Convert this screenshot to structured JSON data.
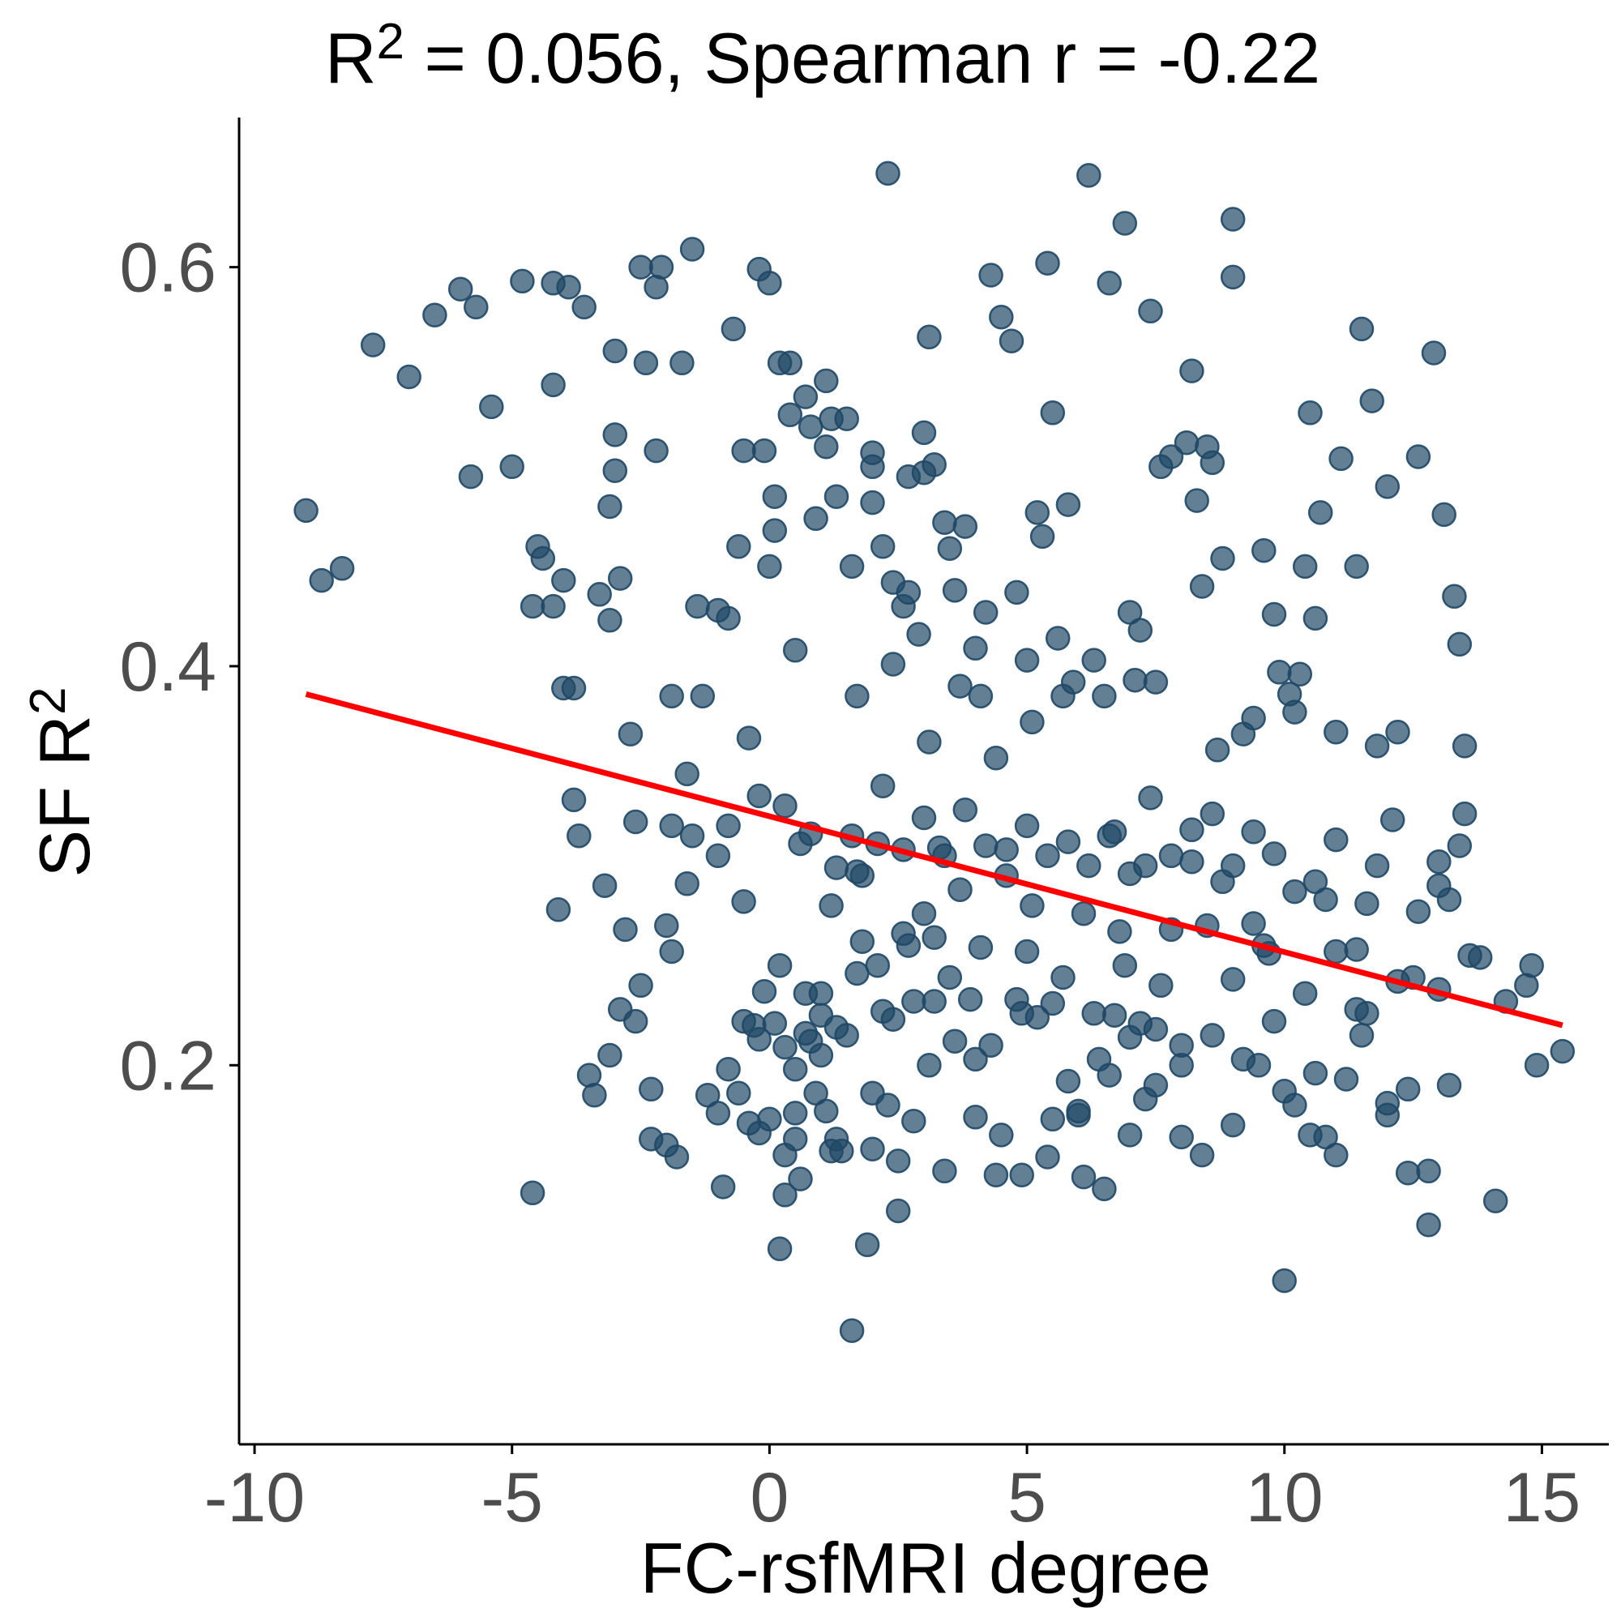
{
  "chart_data": {
    "type": "scatter",
    "title": {
      "prefix": "R",
      "superscript": "2",
      "suffix": " = 0.056, Spearman r = -0.22"
    },
    "xlabel": "FC-rsfMRI degree",
    "ylabel": {
      "text": "SF R",
      "superscript": "2"
    },
    "xlim": [
      -10.3,
      16.3
    ],
    "ylim": [
      0.01,
      0.675
    ],
    "x_ticks": [
      {
        "value": -10,
        "label": "-10"
      },
      {
        "value": -5,
        "label": "-5"
      },
      {
        "value": 0,
        "label": "0"
      },
      {
        "value": 5,
        "label": "5"
      },
      {
        "value": 10,
        "label": "10"
      },
      {
        "value": 15,
        "label": "15"
      }
    ],
    "y_ticks": [
      {
        "value": 0.2,
        "label": "0.2"
      },
      {
        "value": 0.4,
        "label": "0.4"
      },
      {
        "value": 0.6,
        "label": "0.6"
      }
    ],
    "grid": false,
    "legend": "none",
    "point_color": "#1f4866",
    "point_opacity": 0.7,
    "fit_line": {
      "color": "#ff0000",
      "x": [
        -9.0,
        15.4
      ],
      "y": [
        0.386,
        0.22
      ]
    },
    "points": [
      [
        -9.0,
        0.478
      ],
      [
        -8.7,
        0.443
      ],
      [
        -8.3,
        0.449
      ],
      [
        -7.7,
        0.561
      ],
      [
        -7.0,
        0.545
      ],
      [
        -6.5,
        0.576
      ],
      [
        -6.0,
        0.589
      ],
      [
        -5.8,
        0.495
      ],
      [
        -5.7,
        0.58
      ],
      [
        -5.4,
        0.53
      ],
      [
        -5.0,
        0.5
      ],
      [
        -4.8,
        0.593
      ],
      [
        -4.6,
        0.43
      ],
      [
        -4.6,
        0.136
      ],
      [
        -4.5,
        0.46
      ],
      [
        -4.4,
        0.454
      ],
      [
        -4.2,
        0.592
      ],
      [
        -4.2,
        0.541
      ],
      [
        -4.2,
        0.43
      ],
      [
        -4.1,
        0.278
      ],
      [
        -4.0,
        0.443
      ],
      [
        -4.0,
        0.389
      ],
      [
        -3.9,
        0.59
      ],
      [
        -3.8,
        0.389
      ],
      [
        -3.8,
        0.333
      ],
      [
        -3.7,
        0.315
      ],
      [
        -3.6,
        0.58
      ],
      [
        -3.5,
        0.195
      ],
      [
        -3.4,
        0.185
      ],
      [
        -3.3,
        0.436
      ],
      [
        -3.2,
        0.29
      ],
      [
        -3.1,
        0.48
      ],
      [
        -3.1,
        0.423
      ],
      [
        -3.1,
        0.205
      ],
      [
        -3.0,
        0.558
      ],
      [
        -3.0,
        0.516
      ],
      [
        -3.0,
        0.498
      ],
      [
        -2.9,
        0.444
      ],
      [
        -2.9,
        0.228
      ],
      [
        -2.8,
        0.268
      ],
      [
        -2.7,
        0.366
      ],
      [
        -2.6,
        0.222
      ],
      [
        -2.6,
        0.322
      ],
      [
        -2.5,
        0.6
      ],
      [
        -2.4,
        0.552
      ],
      [
        -2.3,
        0.188
      ],
      [
        -2.3,
        0.163
      ],
      [
        -2.2,
        0.508
      ],
      [
        -2.2,
        0.59
      ],
      [
        -2.1,
        0.6
      ],
      [
        -2.0,
        0.16
      ],
      [
        -1.9,
        0.257
      ],
      [
        -1.9,
        0.385
      ],
      [
        -1.9,
        0.32
      ],
      [
        -1.8,
        0.154
      ],
      [
        -1.7,
        0.552
      ],
      [
        -1.6,
        0.346
      ],
      [
        -1.6,
        0.291
      ],
      [
        -1.5,
        0.609
      ],
      [
        -1.4,
        0.43
      ],
      [
        -1.3,
        0.385
      ],
      [
        -1.2,
        0.185
      ],
      [
        -1.0,
        0.428
      ],
      [
        -0.9,
        0.139
      ],
      [
        -0.8,
        0.198
      ],
      [
        -0.8,
        0.424
      ],
      [
        -0.7,
        0.569
      ],
      [
        -0.6,
        0.46
      ],
      [
        -0.6,
        0.186
      ],
      [
        -0.5,
        0.508
      ],
      [
        -0.4,
        0.364
      ],
      [
        -0.4,
        0.171
      ],
      [
        -0.3,
        0.22
      ],
      [
        -0.2,
        0.166
      ],
      [
        -0.2,
        0.213
      ],
      [
        -0.2,
        0.599
      ],
      [
        -0.1,
        0.508
      ],
      [
        -0.1,
        0.237
      ],
      [
        0.0,
        0.45
      ],
      [
        0.0,
        0.592
      ],
      [
        0.1,
        0.221
      ],
      [
        0.1,
        0.485
      ],
      [
        0.1,
        0.468
      ],
      [
        0.2,
        0.552
      ],
      [
        0.2,
        0.25
      ],
      [
        0.3,
        0.209
      ],
      [
        0.3,
        0.155
      ],
      [
        0.4,
        0.526
      ],
      [
        0.4,
        0.552
      ],
      [
        0.5,
        0.198
      ],
      [
        0.5,
        0.176
      ],
      [
        0.5,
        0.408
      ],
      [
        0.6,
        0.311
      ],
      [
        0.7,
        0.535
      ],
      [
        0.7,
        0.236
      ],
      [
        0.8,
        0.52
      ],
      [
        0.8,
        0.212
      ],
      [
        0.9,
        0.474
      ],
      [
        1.0,
        0.205
      ],
      [
        1.0,
        0.225
      ],
      [
        1.1,
        0.51
      ],
      [
        1.1,
        0.177
      ],
      [
        1.1,
        0.543
      ],
      [
        1.2,
        0.524
      ],
      [
        1.2,
        0.157
      ],
      [
        1.3,
        0.485
      ],
      [
        1.3,
        0.219
      ],
      [
        1.4,
        0.157
      ],
      [
        1.5,
        0.524
      ],
      [
        1.6,
        0.45
      ],
      [
        1.6,
        0.067
      ],
      [
        1.7,
        0.385
      ],
      [
        1.7,
        0.246
      ],
      [
        1.8,
        0.262
      ],
      [
        1.9,
        0.11
      ],
      [
        2.0,
        0.507
      ],
      [
        2.0,
        0.5
      ],
      [
        2.0,
        0.482
      ],
      [
        2.1,
        0.311
      ],
      [
        2.2,
        0.46
      ],
      [
        2.2,
        0.227
      ],
      [
        2.3,
        0.647
      ],
      [
        2.4,
        0.442
      ],
      [
        2.4,
        0.401
      ],
      [
        2.5,
        0.127
      ],
      [
        2.6,
        0.266
      ],
      [
        2.6,
        0.43
      ],
      [
        2.7,
        0.495
      ],
      [
        2.7,
        0.437
      ],
      [
        2.8,
        0.232
      ],
      [
        2.9,
        0.416
      ],
      [
        3.0,
        0.517
      ],
      [
        3.0,
        0.497
      ],
      [
        3.1,
        0.565
      ],
      [
        3.1,
        0.362
      ],
      [
        3.2,
        0.264
      ],
      [
        3.2,
        0.501
      ],
      [
        3.3,
        0.309
      ],
      [
        3.4,
        0.472
      ],
      [
        3.5,
        0.459
      ],
      [
        3.6,
        0.438
      ],
      [
        3.7,
        0.39
      ],
      [
        3.8,
        0.47
      ],
      [
        3.9,
        0.233
      ],
      [
        4.0,
        0.409
      ],
      [
        4.1,
        0.385
      ],
      [
        4.2,
        0.427
      ],
      [
        4.3,
        0.596
      ],
      [
        4.4,
        0.354
      ],
      [
        4.5,
        0.575
      ],
      [
        4.7,
        0.563
      ],
      [
        4.8,
        0.437
      ],
      [
        4.9,
        0.226
      ],
      [
        5.0,
        0.403
      ],
      [
        5.1,
        0.372
      ],
      [
        5.2,
        0.477
      ],
      [
        5.3,
        0.465
      ],
      [
        5.4,
        0.602
      ],
      [
        5.5,
        0.527
      ],
      [
        5.6,
        0.414
      ],
      [
        5.7,
        0.385
      ],
      [
        5.8,
        0.481
      ],
      [
        5.9,
        0.392
      ],
      [
        6.1,
        0.276
      ],
      [
        6.2,
        0.646
      ],
      [
        6.3,
        0.403
      ],
      [
        6.5,
        0.385
      ],
      [
        6.6,
        0.592
      ],
      [
        6.7,
        0.317
      ],
      [
        6.8,
        0.267
      ],
      [
        6.9,
        0.622
      ],
      [
        7.0,
        0.427
      ],
      [
        7.1,
        0.393
      ],
      [
        7.2,
        0.418
      ],
      [
        7.3,
        0.3
      ],
      [
        7.4,
        0.578
      ],
      [
        7.5,
        0.392
      ],
      [
        7.6,
        0.5
      ],
      [
        7.8,
        0.505
      ],
      [
        8.0,
        0.2
      ],
      [
        8.1,
        0.512
      ],
      [
        8.2,
        0.548
      ],
      [
        8.3,
        0.483
      ],
      [
        8.4,
        0.44
      ],
      [
        8.5,
        0.51
      ],
      [
        8.6,
        0.502
      ],
      [
        8.7,
        0.358
      ],
      [
        8.8,
        0.454
      ],
      [
        9.0,
        0.624
      ],
      [
        9.0,
        0.595
      ],
      [
        9.2,
        0.366
      ],
      [
        9.4,
        0.374
      ],
      [
        9.6,
        0.458
      ],
      [
        9.7,
        0.256
      ],
      [
        9.8,
        0.426
      ],
      [
        9.9,
        0.397
      ],
      [
        10.1,
        0.386
      ],
      [
        10.2,
        0.377
      ],
      [
        10.3,
        0.396
      ],
      [
        10.4,
        0.45
      ],
      [
        10.5,
        0.527
      ],
      [
        10.6,
        0.424
      ],
      [
        10.7,
        0.477
      ],
      [
        10.8,
        0.283
      ],
      [
        11.0,
        0.367
      ],
      [
        11.1,
        0.504
      ],
      [
        11.4,
        0.45
      ],
      [
        11.5,
        0.569
      ],
      [
        11.6,
        0.281
      ],
      [
        11.7,
        0.533
      ],
      [
        11.8,
        0.36
      ],
      [
        12.0,
        0.49
      ],
      [
        12.1,
        0.323
      ],
      [
        12.2,
        0.367
      ],
      [
        12.4,
        0.188
      ],
      [
        12.6,
        0.505
      ],
      [
        12.8,
        0.147
      ],
      [
        12.9,
        0.557
      ],
      [
        13.0,
        0.238
      ],
      [
        13.1,
        0.476
      ],
      [
        13.2,
        0.283
      ],
      [
        13.3,
        0.435
      ],
      [
        13.4,
        0.411
      ],
      [
        13.5,
        0.36
      ],
      [
        13.8,
        0.254
      ],
      [
        14.1,
        0.132
      ],
      [
        14.3,
        0.232
      ],
      [
        14.7,
        0.24
      ],
      [
        14.8,
        0.25
      ],
      [
        14.9,
        0.2
      ],
      [
        15.4,
        0.207
      ],
      [
        0.3,
        0.135
      ],
      [
        0.7,
        0.216
      ],
      [
        1.2,
        0.28
      ],
      [
        1.6,
        0.315
      ],
      [
        2.0,
        0.158
      ],
      [
        2.3,
        0.18
      ],
      [
        2.7,
        0.26
      ],
      [
        3.1,
        0.2
      ],
      [
        3.4,
        0.147
      ],
      [
        3.7,
        0.288
      ],
      [
        4.0,
        0.174
      ],
      [
        4.3,
        0.21
      ],
      [
        4.6,
        0.295
      ],
      [
        4.9,
        0.145
      ],
      [
        5.2,
        0.224
      ],
      [
        5.5,
        0.173
      ],
      [
        5.8,
        0.192
      ],
      [
        6.1,
        0.144
      ],
      [
        6.4,
        0.203
      ],
      [
        6.7,
        0.225
      ],
      [
        7.0,
        0.165
      ],
      [
        7.3,
        0.183
      ],
      [
        7.6,
        0.24
      ],
      [
        8.0,
        0.21
      ],
      [
        8.4,
        0.155
      ],
      [
        8.8,
        0.292
      ],
      [
        9.2,
        0.203
      ],
      [
        9.6,
        0.26
      ],
      [
        10.0,
        0.187
      ],
      [
        10.4,
        0.236
      ],
      [
        10.8,
        0.164
      ],
      [
        11.2,
        0.193
      ],
      [
        11.6,
        0.226
      ],
      [
        12.0,
        0.175
      ],
      [
        12.4,
        0.146
      ],
      [
        12.8,
        0.12
      ],
      [
        13.2,
        0.19
      ],
      [
        13.6,
        0.255
      ],
      [
        -1.0,
        0.305
      ],
      [
        -0.5,
        0.282
      ],
      [
        0.0,
        0.173
      ],
      [
        0.5,
        0.163
      ],
      [
        1.0,
        0.236
      ],
      [
        1.5,
        0.215
      ],
      [
        2.0,
        0.186
      ],
      [
        2.5,
        0.152
      ],
      [
        3.0,
        0.276
      ],
      [
        3.5,
        0.244
      ],
      [
        4.0,
        0.203
      ],
      [
        4.5,
        0.165
      ],
      [
        5.0,
        0.257
      ],
      [
        5.5,
        0.231
      ],
      [
        6.0,
        0.175
      ],
      [
        6.5,
        0.138
      ],
      [
        7.0,
        0.214
      ],
      [
        7.5,
        0.19
      ],
      [
        8.0,
        0.164
      ],
      [
        8.5,
        0.27
      ],
      [
        9.0,
        0.243
      ],
      [
        9.5,
        0.2
      ],
      [
        10.0,
        0.092
      ],
      [
        10.5,
        0.165
      ],
      [
        11.0,
        0.257
      ],
      [
        11.5,
        0.215
      ],
      [
        12.0,
        0.181
      ],
      [
        12.5,
        0.244
      ],
      [
        13.0,
        0.29
      ],
      [
        13.5,
        0.326
      ],
      [
        -2.5,
        0.24
      ],
      [
        -2.0,
        0.27
      ],
      [
        -1.5,
        0.315
      ],
      [
        -1.0,
        0.176
      ],
      [
        -0.5,
        0.222
      ],
      [
        0.2,
        0.108
      ],
      [
        0.6,
        0.143
      ],
      [
        0.9,
        0.186
      ],
      [
        1.3,
        0.163
      ],
      [
        1.7,
        0.297
      ],
      [
        2.1,
        0.25
      ],
      [
        2.4,
        0.223
      ],
      [
        2.8,
        0.172
      ],
      [
        3.2,
        0.232
      ],
      [
        3.6,
        0.212
      ],
      [
        4.1,
        0.259
      ],
      [
        4.4,
        0.145
      ],
      [
        4.8,
        0.233
      ],
      [
        5.1,
        0.28
      ],
      [
        5.4,
        0.154
      ],
      [
        5.7,
        0.244
      ],
      [
        6.0,
        0.177
      ],
      [
        6.3,
        0.226
      ],
      [
        6.6,
        0.195
      ],
      [
        6.9,
        0.25
      ],
      [
        7.2,
        0.221
      ],
      [
        7.5,
        0.218
      ],
      [
        7.8,
        0.268
      ],
      [
        8.2,
        0.302
      ],
      [
        8.6,
        0.215
      ],
      [
        9.0,
        0.17
      ],
      [
        9.4,
        0.271
      ],
      [
        9.8,
        0.222
      ],
      [
        10.2,
        0.18
      ],
      [
        10.6,
        0.196
      ],
      [
        11.0,
        0.155
      ],
      [
        11.4,
        0.228
      ],
      [
        11.8,
        0.3
      ],
      [
        12.2,
        0.242
      ],
      [
        12.6,
        0.277
      ],
      [
        13.0,
        0.302
      ],
      [
        13.4,
        0.31
      ],
      [
        -0.8,
        0.32
      ],
      [
        -0.2,
        0.335
      ],
      [
        0.3,
        0.33
      ],
      [
        0.8,
        0.316
      ],
      [
        1.3,
        0.299
      ],
      [
        1.8,
        0.295
      ],
      [
        2.2,
        0.34
      ],
      [
        2.6,
        0.308
      ],
      [
        3.0,
        0.324
      ],
      [
        3.4,
        0.305
      ],
      [
        3.8,
        0.328
      ],
      [
        4.2,
        0.31
      ],
      [
        4.6,
        0.308
      ],
      [
        5.0,
        0.32
      ],
      [
        5.4,
        0.305
      ],
      [
        5.8,
        0.312
      ],
      [
        6.2,
        0.3
      ],
      [
        6.6,
        0.315
      ],
      [
        7.0,
        0.296
      ],
      [
        7.4,
        0.334
      ],
      [
        7.8,
        0.305
      ],
      [
        8.2,
        0.318
      ],
      [
        8.6,
        0.326
      ],
      [
        9.0,
        0.3
      ],
      [
        9.4,
        0.317
      ],
      [
        9.8,
        0.306
      ],
      [
        10.2,
        0.287
      ],
      [
        10.6,
        0.292
      ],
      [
        11.0,
        0.313
      ],
      [
        11.4,
        0.258
      ]
    ]
  }
}
